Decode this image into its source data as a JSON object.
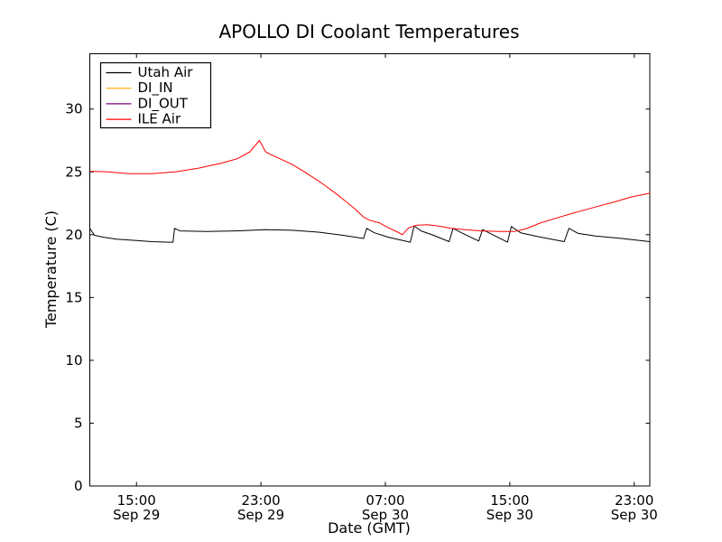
{
  "chart_data": {
    "type": "line",
    "title": "APOLLO DI Coolant Temperatures",
    "xlabel": "Date (GMT)",
    "ylabel": "Temperature (C)",
    "x_unit": "hours since Sep 29 12:00 GMT",
    "xlim": [
      0,
      36
    ],
    "ylim": [
      0,
      34.4
    ],
    "grid": false,
    "yticks": [
      0,
      5,
      10,
      15,
      20,
      25,
      30
    ],
    "xticks": [
      {
        "t": 3,
        "time": "15:00",
        "date": "Sep 29"
      },
      {
        "t": 11,
        "time": "23:00",
        "date": "Sep 29"
      },
      {
        "t": 19,
        "time": "07:00",
        "date": "Sep 30"
      },
      {
        "t": 27,
        "time": "15:00",
        "date": "Sep 30"
      },
      {
        "t": 35,
        "time": "23:00",
        "date": "Sep 30"
      }
    ],
    "legend": {
      "position": "upper-left",
      "entries": [
        {
          "label": "Utah Air",
          "color": "#000000"
        },
        {
          "label": "DI_IN",
          "color": "#ffa500"
        },
        {
          "label": "DI_OUT",
          "color": "#800080"
        },
        {
          "label": "ILE Air",
          "color": "#ff0000"
        }
      ]
    },
    "series": [
      {
        "name": "Utah Air",
        "color": "#000000",
        "points": [
          [
            0,
            20.5
          ],
          [
            0.3,
            19.95
          ],
          [
            0.9,
            19.8
          ],
          [
            1.7,
            19.65
          ],
          [
            2.9,
            19.55
          ],
          [
            4.0,
            19.45
          ],
          [
            5.1,
            19.4
          ],
          [
            5.35,
            19.4
          ],
          [
            5.45,
            20.5
          ],
          [
            5.8,
            20.3
          ],
          [
            7.5,
            20.25
          ],
          [
            9.4,
            20.3
          ],
          [
            11.3,
            20.4
          ],
          [
            13.0,
            20.35
          ],
          [
            14.7,
            20.2
          ],
          [
            16.3,
            19.95
          ],
          [
            17.6,
            19.7
          ],
          [
            17.8,
            20.5
          ],
          [
            18.3,
            20.15
          ],
          [
            19.2,
            19.8
          ],
          [
            20.6,
            19.4
          ],
          [
            20.85,
            20.7
          ],
          [
            21.3,
            20.3
          ],
          [
            22.1,
            19.95
          ],
          [
            23.1,
            19.45
          ],
          [
            23.35,
            20.5
          ],
          [
            23.9,
            20.15
          ],
          [
            25.0,
            19.5
          ],
          [
            25.25,
            20.4
          ],
          [
            25.9,
            20.0
          ],
          [
            26.85,
            19.4
          ],
          [
            27.1,
            20.65
          ],
          [
            27.7,
            20.15
          ],
          [
            28.8,
            19.85
          ],
          [
            30.5,
            19.45
          ],
          [
            30.8,
            20.5
          ],
          [
            31.4,
            20.1
          ],
          [
            32.5,
            19.9
          ],
          [
            34.2,
            19.7
          ],
          [
            36.0,
            19.45
          ]
        ]
      },
      {
        "name": "DI_IN",
        "color": "#ffa500",
        "points": []
      },
      {
        "name": "DI_OUT",
        "color": "#800080",
        "points": []
      },
      {
        "name": "ILE Air",
        "color": "#ff0000",
        "points": [
          [
            0,
            25.05
          ],
          [
            1.2,
            25.0
          ],
          [
            2.5,
            24.85
          ],
          [
            4.0,
            24.85
          ],
          [
            5.5,
            25.0
          ],
          [
            7.0,
            25.3
          ],
          [
            8.5,
            25.7
          ],
          [
            9.5,
            26.05
          ],
          [
            10.3,
            26.6
          ],
          [
            10.9,
            27.5
          ],
          [
            11.3,
            26.6
          ],
          [
            11.6,
            26.4
          ],
          [
            12.3,
            26.0
          ],
          [
            13.0,
            25.6
          ],
          [
            13.8,
            25.0
          ],
          [
            14.8,
            24.2
          ],
          [
            15.9,
            23.2
          ],
          [
            17.0,
            22.1
          ],
          [
            17.6,
            21.4
          ],
          [
            18.0,
            21.15
          ],
          [
            18.6,
            20.95
          ],
          [
            19.2,
            20.55
          ],
          [
            19.8,
            20.2
          ],
          [
            20.1,
            20.0
          ],
          [
            20.5,
            20.55
          ],
          [
            21.0,
            20.75
          ],
          [
            21.7,
            20.8
          ],
          [
            22.4,
            20.7
          ],
          [
            23.2,
            20.5
          ],
          [
            24.1,
            20.4
          ],
          [
            25.2,
            20.3
          ],
          [
            26.3,
            20.25
          ],
          [
            27.3,
            20.25
          ],
          [
            28.0,
            20.45
          ],
          [
            29.0,
            20.95
          ],
          [
            30.2,
            21.4
          ],
          [
            31.3,
            21.8
          ],
          [
            32.5,
            22.2
          ],
          [
            33.7,
            22.6
          ],
          [
            34.8,
            23.0
          ],
          [
            36.0,
            23.3
          ]
        ]
      }
    ]
  }
}
